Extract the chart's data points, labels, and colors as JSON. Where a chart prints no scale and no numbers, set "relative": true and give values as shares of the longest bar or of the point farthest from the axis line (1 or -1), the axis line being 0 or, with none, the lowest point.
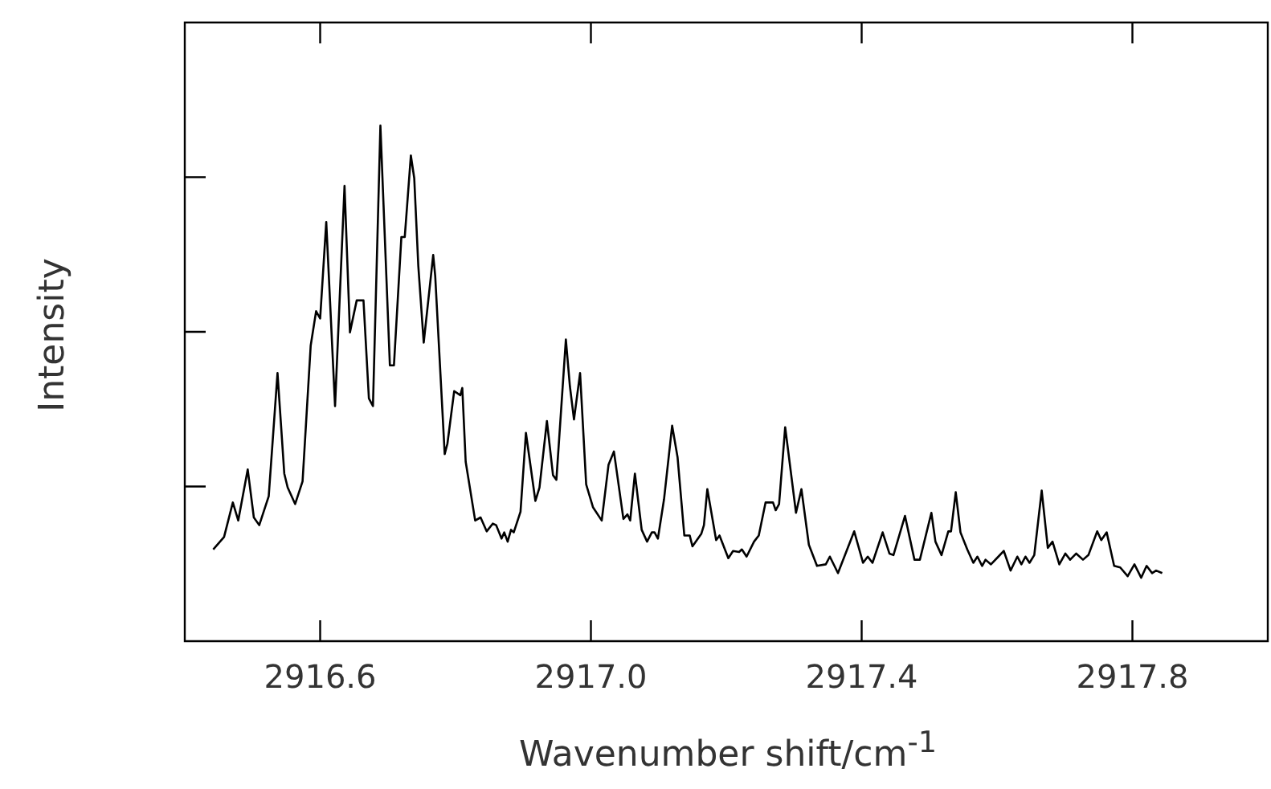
{
  "chart_data": {
    "type": "line",
    "xlabel": "Wavenumber shift/cm$^{-1}$",
    "ylabel": "Intensity",
    "relative": true,
    "marker": "none",
    "line_style": "solid",
    "grid": false,
    "legend": false,
    "xlim": [
      2916.4,
      2918.0
    ],
    "xticks": [
      2916.6,
      {
        "value": 2917.0,
        "label": "2917.0"
      },
      2917.4,
      2917.8
    ],
    "series": [
      {
        "color": "#000000",
        "x": [
          2916.442,
          2916.458,
          2916.471,
          2916.479,
          2916.493,
          2916.502,
          2916.51,
          2916.524,
          2916.537,
          2916.547,
          2916.552,
          2916.563,
          2916.574,
          2916.586,
          2916.594,
          2916.6,
          2916.609,
          2916.622,
          2916.636,
          2916.644,
          2916.654,
          2916.664,
          2916.672,
          2916.678,
          2916.689,
          2916.703,
          2916.709,
          2916.72,
          2916.725,
          2916.734,
          2916.739,
          2916.745,
          2916.753,
          2916.767,
          2916.77,
          2916.784,
          2916.788,
          2916.798,
          2916.807,
          2916.81,
          2916.815,
          2916.829,
          2916.837,
          2916.846,
          2916.855,
          2916.86,
          2916.868,
          2916.872,
          2916.877,
          2916.882,
          2916.886,
          2916.896,
          2916.904,
          2916.918,
          2916.924,
          2916.935,
          2916.944,
          2916.949,
          2916.963,
          2916.969,
          2916.975,
          2916.984,
          2916.993,
          2917.003,
          2917.016,
          2917.026,
          2917.034,
          2917.048,
          2917.054,
          2917.058,
          2917.065,
          2917.075,
          2917.083,
          2917.09,
          2917.094,
          2917.099,
          2917.108,
          2917.12,
          2917.128,
          2917.138,
          2917.146,
          2917.15,
          2917.163,
          2917.167,
          2917.172,
          2917.185,
          2917.19,
          2917.203,
          2917.21,
          2917.219,
          2917.223,
          2917.23,
          2917.241,
          2917.248,
          2917.258,
          2917.269,
          2917.273,
          2917.278,
          2917.287,
          2917.303,
          2917.311,
          2917.322,
          2917.334,
          2917.347,
          2917.353,
          2917.365,
          2917.389,
          2917.402,
          2917.409,
          2917.416,
          2917.431,
          2917.441,
          2917.447,
          2917.464,
          2917.478,
          2917.486,
          2917.503,
          2917.509,
          2917.518,
          2917.528,
          2917.532,
          2917.539,
          2917.546,
          2917.556,
          2917.565,
          2917.571,
          2917.578,
          2917.583,
          2917.591,
          2917.602,
          2917.61,
          2917.62,
          2917.63,
          2917.636,
          2917.642,
          2917.648,
          2917.655,
          2917.666,
          2917.675,
          2917.682,
          2917.692,
          2917.701,
          2917.708,
          2917.717,
          2917.727,
          2917.735,
          2917.748,
          2917.754,
          2917.762,
          2917.773,
          2917.782,
          2917.793,
          2917.803,
          2917.813,
          2917.821,
          2917.829,
          2917.835,
          2917.844
        ],
        "values": [
          0.178,
          0.202,
          0.269,
          0.234,
          0.333,
          0.24,
          0.225,
          0.281,
          0.52,
          0.325,
          0.298,
          0.266,
          0.31,
          0.573,
          0.64,
          0.626,
          0.813,
          0.456,
          0.883,
          0.599,
          0.661,
          0.661,
          0.471,
          0.456,
          1.0,
          0.535,
          0.535,
          0.784,
          0.784,
          0.942,
          0.898,
          0.728,
          0.579,
          0.749,
          0.708,
          0.363,
          0.383,
          0.485,
          0.477,
          0.491,
          0.348,
          0.234,
          0.24,
          0.213,
          0.228,
          0.225,
          0.199,
          0.211,
          0.193,
          0.216,
          0.211,
          0.251,
          0.404,
          0.272,
          0.298,
          0.427,
          0.322,
          0.313,
          0.585,
          0.494,
          0.43,
          0.52,
          0.304,
          0.26,
          0.234,
          0.342,
          0.368,
          0.237,
          0.246,
          0.234,
          0.325,
          0.216,
          0.193,
          0.211,
          0.211,
          0.199,
          0.275,
          0.418,
          0.357,
          0.205,
          0.205,
          0.184,
          0.208,
          0.225,
          0.295,
          0.196,
          0.205,
          0.161,
          0.175,
          0.173,
          0.178,
          0.164,
          0.193,
          0.205,
          0.269,
          0.269,
          0.254,
          0.266,
          0.415,
          0.249,
          0.295,
          0.187,
          0.146,
          0.149,
          0.164,
          0.132,
          0.213,
          0.152,
          0.164,
          0.152,
          0.211,
          0.17,
          0.167,
          0.243,
          0.158,
          0.158,
          0.249,
          0.193,
          0.167,
          0.213,
          0.213,
          0.289,
          0.211,
          0.178,
          0.152,
          0.164,
          0.146,
          0.158,
          0.149,
          0.164,
          0.175,
          0.137,
          0.164,
          0.149,
          0.164,
          0.152,
          0.167,
          0.292,
          0.181,
          0.193,
          0.149,
          0.17,
          0.158,
          0.17,
          0.158,
          0.167,
          0.213,
          0.196,
          0.211,
          0.146,
          0.143,
          0.126,
          0.149,
          0.123,
          0.146,
          0.132,
          0.137,
          0.132
        ]
      }
    ]
  }
}
